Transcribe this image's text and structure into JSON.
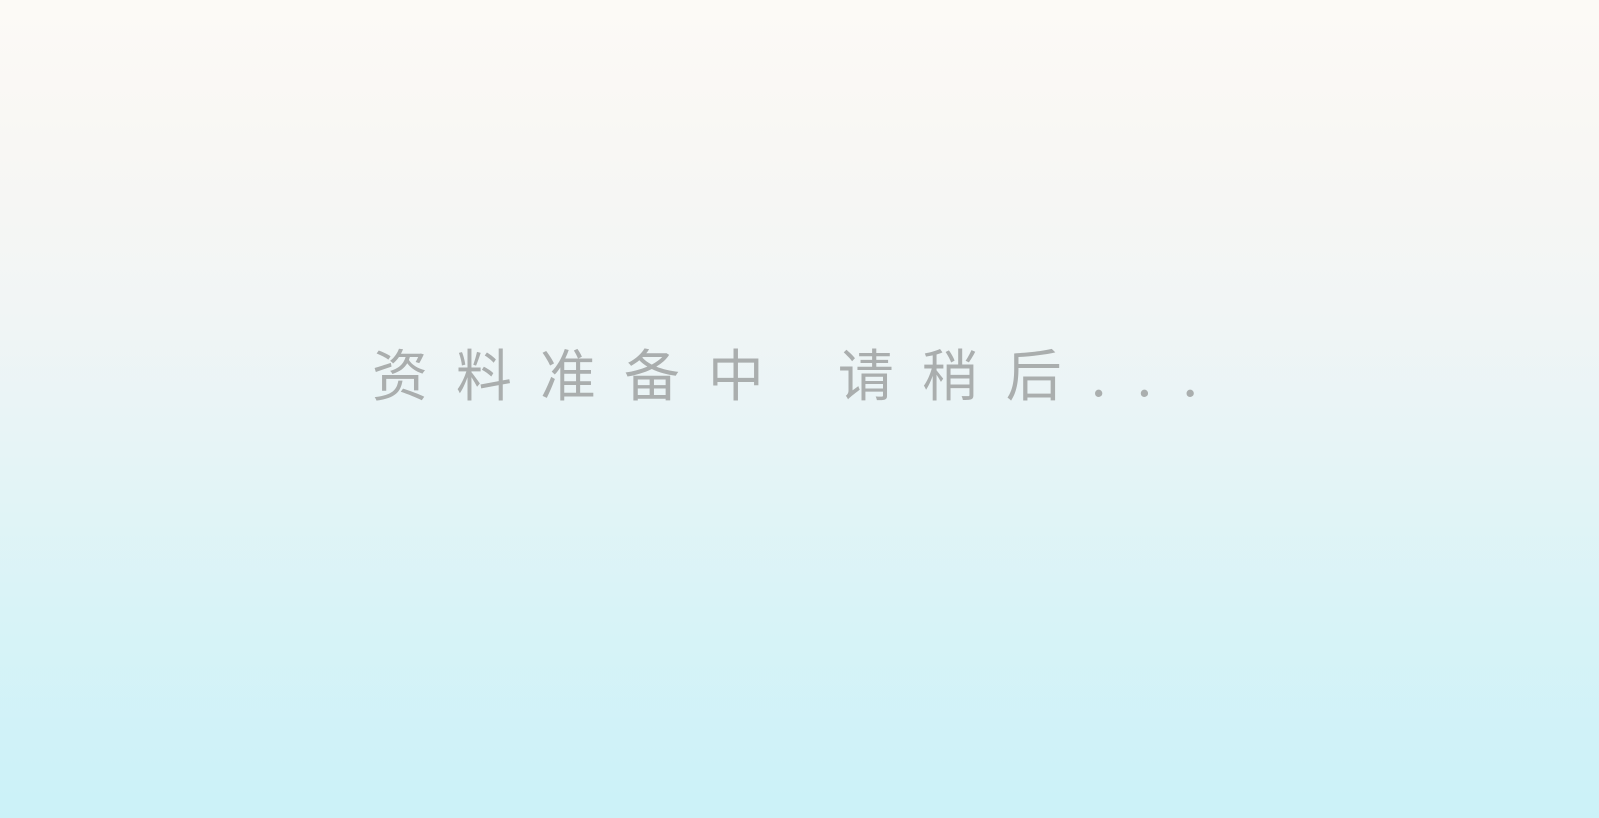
{
  "loading": {
    "message": "资料准备中 请稍后..."
  },
  "colors": {
    "background_top": "#fcfaf6",
    "background_bottom": "#cbf2f8",
    "text": "#aaaeae"
  }
}
